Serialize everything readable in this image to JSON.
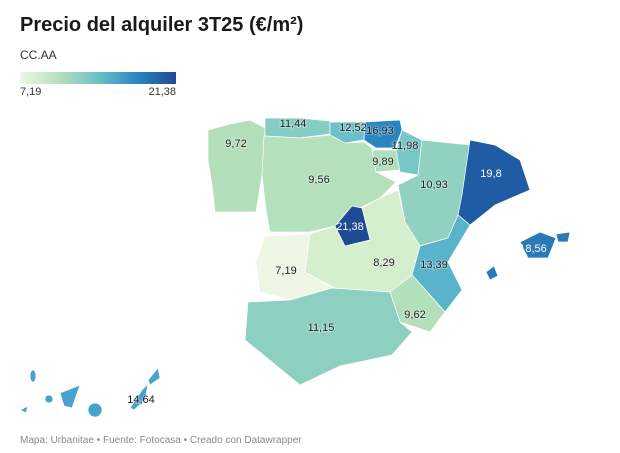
{
  "title": "Precio del alquiler 3T25 (€/m²)",
  "subtitle": "CC.AA",
  "legend": {
    "min": "7,19",
    "max": "21,38",
    "color_low": "#eef7e4",
    "color_high": "#1e4a93"
  },
  "regions": {
    "galicia": {
      "value": "9,72",
      "color": "#b3dfbb"
    },
    "asturias": {
      "value": "11,44",
      "color": "#84ccc4"
    },
    "cantabria": {
      "value": "12,52",
      "color": "#6cc0c8"
    },
    "pais_vasco": {
      "value": "16,93",
      "color": "#2a86c1"
    },
    "navarra": {
      "value": "11,98",
      "color": "#77c7c7"
    },
    "la_rioja": {
      "value": "9,89",
      "color": "#b0dfbb"
    },
    "castilla_leon": {
      "value": "9,56",
      "color": "#b5e0bc"
    },
    "aragon": {
      "value": "10,93",
      "color": "#91d1c1"
    },
    "cataluna": {
      "value": "19,8",
      "color": "#1f5ca3"
    },
    "madrid": {
      "value": "21,38",
      "color": "#1e4a93"
    },
    "castilla_la_mancha": {
      "value": "8,29",
      "color": "#d5eecd"
    },
    "extremadura": {
      "value": "7,19",
      "color": "#eef7e4"
    },
    "valencia": {
      "value": "13,39",
      "color": "#58b3cb"
    },
    "murcia": {
      "value": "9,62",
      "color": "#b3dfbb"
    },
    "andalucia": {
      "value": "11,15",
      "color": "#8dd0c2"
    },
    "baleares": {
      "value": "18,56",
      "color": "#2a7ab8"
    },
    "canarias": {
      "value": "14,64",
      "color": "#45a4cd"
    }
  },
  "footer": "Mapa: Urbanitae • Fuente: Fotocasa • Creado con Datawrapper"
}
